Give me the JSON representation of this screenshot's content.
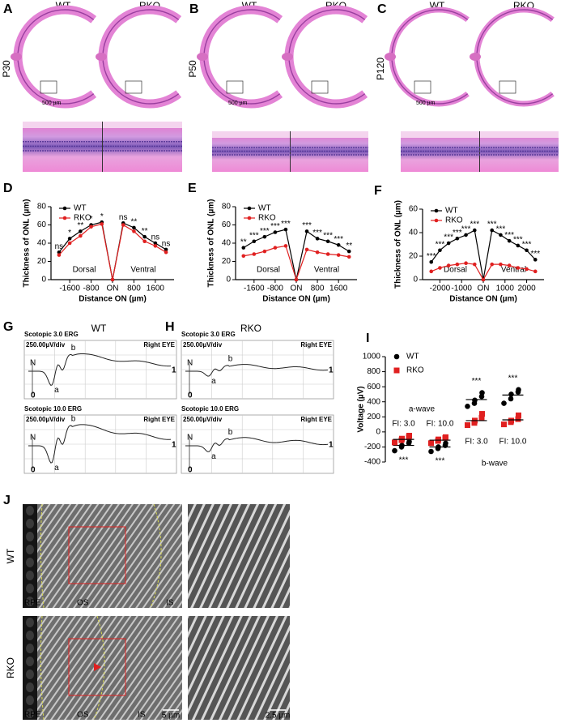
{
  "figure": {
    "panel_labels": [
      "A",
      "B",
      "C",
      "D",
      "E",
      "F",
      "G",
      "H",
      "I",
      "J"
    ],
    "eyes": [
      {
        "genotypes": [
          "WT",
          "RKO"
        ],
        "age": "P30",
        "scale": "500 µm"
      },
      {
        "genotypes": [
          "WT",
          "RKO"
        ],
        "age": "P50",
        "scale": "500 µm"
      },
      {
        "genotypes": [
          "WT",
          "RKO"
        ],
        "age": "P120",
        "scale": "500 µm"
      }
    ],
    "erg": [
      {
        "genotype": "WT",
        "traces": [
          {
            "title": "Scotopic 3.0 ERG",
            "scale": "250.00µV/div",
            "eye": "Right EYE"
          },
          {
            "title": "Scotopic 10.0 ERG",
            "scale": "250.00µV/div",
            "eye": "Right EYE"
          }
        ]
      },
      {
        "genotype": "RKO",
        "traces": [
          {
            "title": "Scotopic 3.0 ERG",
            "scale": "250.00µV/div",
            "eye": "Right EYE"
          },
          {
            "title": "Scotopic 10.0 ERG",
            "scale": "250.00µV/div",
            "eye": "Right EYE"
          }
        ]
      }
    ],
    "erg_marks": {
      "n": "N",
      "a": "a",
      "b": "b",
      "zero": "0",
      "one": "1"
    },
    "tem": [
      {
        "row": "WT",
        "layers": [
          "RPE",
          "OS",
          "IS"
        ]
      },
      {
        "row": "RKO",
        "layers": [
          "RPE",
          "OS",
          "IS"
        ],
        "scales": [
          "5 µm",
          "2.5 µm"
        ]
      }
    ]
  },
  "chart_data": [
    {
      "type": "line",
      "x": [
        -2000,
        -1600,
        -1200,
        -800,
        -400,
        0,
        400,
        800,
        1200,
        1600,
        2000
      ],
      "xlim": [
        -2300,
        2300
      ],
      "xticks": [
        -1600,
        -800,
        {
          "value": 0,
          "label": "ON"
        },
        800,
        1600
      ],
      "ylim": [
        0,
        80
      ],
      "yticks": [
        0,
        20,
        40,
        60,
        80
      ],
      "x_label": "Distance ON (µm)",
      "y_label": "Thickness of ONL (µm)",
      "regions": [
        "Dorsal",
        "Ventral"
      ],
      "legend": "upper left",
      "series": [
        {
          "name": "WT",
          "color": "#000000",
          "values": [
            30,
            45,
            53,
            60,
            63,
            0,
            62,
            57,
            47,
            40,
            33
          ]
        },
        {
          "name": "RKO",
          "color": "#e02020",
          "values": [
            27,
            40,
            48,
            58,
            61,
            0,
            60,
            53,
            42,
            37,
            30
          ]
        }
      ],
      "significance": [
        "ns",
        "*",
        "**",
        "*",
        "*",
        null,
        "ns",
        "**",
        "**",
        "ns",
        "ns"
      ]
    },
    {
      "type": "line",
      "x": [
        -2000,
        -1600,
        -1200,
        -800,
        -400,
        0,
        400,
        800,
        1200,
        1600,
        2000
      ],
      "xlim": [
        -2300,
        2300
      ],
      "xticks": [
        -1600,
        -800,
        {
          "value": 0,
          "label": "ON"
        },
        800,
        1600
      ],
      "ylim": [
        0,
        80
      ],
      "yticks": [
        0,
        20,
        40,
        60,
        80
      ],
      "x_label": "Distance ON (µm)",
      "y_label": "Thickness of ONL (µm)",
      "regions": [
        "Dorsal",
        "Ventral"
      ],
      "legend": "upper left",
      "series": [
        {
          "name": "WT",
          "color": "#000000",
          "values": [
            35,
            42,
            47,
            52,
            55,
            0,
            53,
            45,
            42,
            38,
            31
          ]
        },
        {
          "name": "RKO",
          "color": "#e02020",
          "values": [
            26,
            28,
            31,
            35,
            37,
            0,
            33,
            30,
            28,
            27,
            25
          ]
        }
      ],
      "significance": [
        "**",
        "***",
        "***",
        "***",
        "***",
        null,
        "***",
        "***",
        "***",
        "***",
        "**"
      ]
    },
    {
      "type": "line",
      "x": [
        -2400,
        -2000,
        -1600,
        -1200,
        -800,
        -400,
        0,
        400,
        800,
        1200,
        1600,
        2000,
        2400
      ],
      "xlim": [
        -2800,
        2800
      ],
      "xticks": [
        -2000,
        -1000,
        {
          "value": 0,
          "label": "ON"
        },
        1000,
        2000
      ],
      "ylim": [
        0,
        60
      ],
      "yticks": [
        0,
        20,
        40,
        60
      ],
      "x_label": "Distance ON (µm)",
      "y_label": "Thickness of ONL (µm)",
      "regions": [
        "Dorsal",
        "Ventral"
      ],
      "legend": "upper left",
      "series": [
        {
          "name": "WT",
          "color": "#000000",
          "values": [
            15,
            25,
            31,
            35,
            38,
            42,
            0,
            42,
            38,
            33,
            29,
            25,
            17
          ]
        },
        {
          "name": "RKO",
          "color": "#e02020",
          "values": [
            7,
            10,
            12,
            13,
            14,
            13,
            0,
            13,
            13,
            12,
            10,
            9,
            7
          ]
        }
      ],
      "significance": [
        "***",
        "***",
        "***",
        "***",
        "***",
        "***",
        null,
        "***",
        "***",
        "***",
        "***",
        "***",
        "***"
      ]
    },
    {
      "type": "scatter",
      "categories": [
        "FI: 3.0",
        "FI: 10.0",
        "FI: 3.0",
        "FI: 10.0"
      ],
      "groups": [
        "a-wave",
        "b-wave"
      ],
      "ylim": [
        -400,
        1000
      ],
      "yticks": [
        -400,
        -200,
        0,
        200,
        400,
        600,
        800,
        1000
      ],
      "y_label": "Voltage (µV)",
      "legend": "upper left",
      "series": [
        {
          "name": "WT",
          "color": "#000000",
          "marker": "circle",
          "values": [
            [
              -250,
              -200,
              -180,
              -150,
              -130
            ],
            [
              -260,
              -220,
              -200,
              -180,
              -150
            ],
            [
              340,
              380,
              420,
              470,
              520
            ],
            [
              380,
              440,
              500,
              530,
              560
            ]
          ],
          "means": [
            -180,
            -200,
            430,
            490
          ]
        },
        {
          "name": "RKO",
          "color": "#e02020",
          "marker": "square",
          "values": [
            [
              -140,
              -110,
              -90,
              -70,
              -50
            ],
            [
              -150,
              -120,
              -100,
              -80,
              -70
            ],
            [
              90,
              120,
              150,
              190,
              240
            ],
            [
              100,
              130,
              150,
              170,
              220
            ]
          ],
          "means": [
            -100,
            -110,
            150,
            160
          ]
        }
      ],
      "significance": [
        "***",
        "***",
        "***",
        "***"
      ]
    }
  ]
}
